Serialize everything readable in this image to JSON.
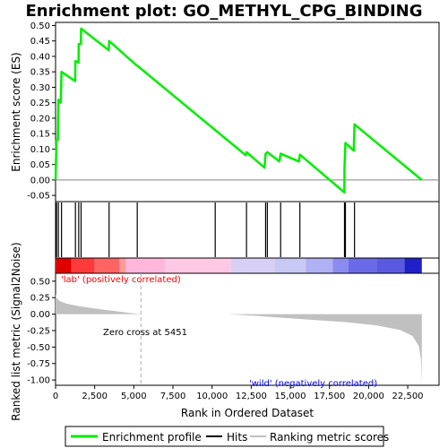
{
  "chart_data": {
    "type": "line",
    "title": "Enrichment plot: GO_METHYL_CPG_BINDING",
    "colors": {
      "enrichment_line": "#00ee00",
      "hits": "#000000",
      "ranking_fill": "#c0c0c0",
      "positive_label": "#ff0000",
      "negative_label": "#0000ff",
      "zero_cross_line": "#aaaaaa"
    },
    "panels": {
      "enrichment": {
        "ylabel": "Enrichment score (ES)",
        "ylim": [
          -0.07,
          0.51
        ],
        "yticks": [
          -0.05,
          0.0,
          0.05,
          0.1,
          0.15,
          0.2,
          0.25,
          0.3,
          0.35,
          0.4,
          0.45,
          0.5
        ],
        "ytick_labels": [
          "-0.05",
          "0.00",
          "0.05",
          "0.10",
          "0.15",
          "0.20",
          "0.25",
          "0.30",
          "0.35",
          "0.40",
          "0.45",
          "0.50"
        ],
        "baseline": 0.0,
        "points": [
          [
            0,
            0.0
          ],
          [
            60,
            0.13
          ],
          [
            150,
            0.13
          ],
          [
            180,
            0.26
          ],
          [
            330,
            0.25
          ],
          [
            380,
            0.35
          ],
          [
            1250,
            0.32
          ],
          [
            1270,
            0.385
          ],
          [
            1470,
            0.38
          ],
          [
            1480,
            0.44
          ],
          [
            1620,
            0.44
          ],
          [
            1630,
            0.49
          ],
          [
            3400,
            0.42
          ],
          [
            3420,
            0.45
          ],
          [
            5200,
            0.37
          ],
          [
            5220,
            0.37
          ],
          [
            12150,
            0.08
          ],
          [
            12200,
            0.09
          ],
          [
            13350,
            0.04
          ],
          [
            13420,
            0.085
          ],
          [
            13530,
            0.09
          ],
          [
            14300,
            0.06
          ],
          [
            14380,
            0.085
          ],
          [
            15550,
            0.06
          ],
          [
            15610,
            0.082
          ],
          [
            18450,
            -0.04
          ],
          [
            18460,
            0.04
          ],
          [
            18520,
            0.12
          ],
          [
            19050,
            0.095
          ],
          [
            19100,
            0.18
          ],
          [
            23400,
            0.0
          ]
        ]
      },
      "hits": {
        "positions": [
          60,
          180,
          380,
          1270,
          1480,
          1630,
          3420,
          5220,
          10200,
          12200,
          13420,
          13530,
          14380,
          15610,
          18460,
          18520,
          19100
        ]
      },
      "ranking": {
        "xlabel": "Rank in Ordered Dataset",
        "ylabel": "Ranked list metric (Signal2Noise)",
        "xlim": [
          0,
          24500
        ],
        "ylim": [
          -1.08,
          0.62
        ],
        "yticks": [
          -1.0,
          -0.75,
          -0.5,
          -0.25,
          0.0,
          0.25,
          0.5
        ],
        "ytick_labels": [
          "-1.00",
          "-0.75",
          "-0.50",
          "-0.25",
          "0.00",
          "0.25",
          "0.50"
        ],
        "xticks": [
          0,
          2500,
          5000,
          7500,
          10000,
          12500,
          15000,
          17500,
          20000,
          22500
        ],
        "xtick_labels": [
          "0",
          "2,500",
          "5,000",
          "7,500",
          "10,000",
          "12,500",
          "15,000",
          "17,500",
          "20,000",
          "22,500"
        ],
        "curve": [
          [
            0,
            0.3
          ],
          [
            60,
            0.25
          ],
          [
            250,
            0.2
          ],
          [
            700,
            0.16
          ],
          [
            1500,
            0.12
          ],
          [
            3000,
            0.07
          ],
          [
            4500,
            0.025
          ],
          [
            5451,
            0.0
          ],
          [
            11000,
            0.0
          ],
          [
            13000,
            -0.03
          ],
          [
            16000,
            -0.08
          ],
          [
            18500,
            -0.12
          ],
          [
            20500,
            -0.17
          ],
          [
            22000,
            -0.24
          ],
          [
            22800,
            -0.33
          ],
          [
            23200,
            -0.48
          ],
          [
            23350,
            -0.7
          ],
          [
            23400,
            -1.05
          ]
        ],
        "zero_cross": 5451,
        "zero_cross_label": "Zero cross at 5451",
        "positive_label": "'lab' (positively correlated)",
        "negative_label": "'wild' (negatively correlated)"
      },
      "heatbar": {
        "total": 23400,
        "segments": [
          {
            "end": 1000,
            "color": "#e00000"
          },
          {
            "end": 2500,
            "color": "#ff3a3a"
          },
          {
            "end": 4100,
            "color": "#ff6464"
          },
          {
            "end": 4500,
            "color": "#ff9a9a"
          },
          {
            "end": 7000,
            "color": "#ffb8dc"
          },
          {
            "end": 11200,
            "color": "#ffc8e4"
          },
          {
            "end": 14000,
            "color": "#d8d0f4"
          },
          {
            "end": 16000,
            "color": "#c8c8f4"
          },
          {
            "end": 17700,
            "color": "#b0b0f4"
          },
          {
            "end": 18700,
            "color": "#8c8cf0"
          },
          {
            "end": 20500,
            "color": "#6a6ae8"
          },
          {
            "end": 22300,
            "color": "#5a5ae0"
          },
          {
            "end": 23400,
            "color": "#2020c8"
          }
        ]
      }
    },
    "legend": {
      "placement": "bottom",
      "items": [
        {
          "label": "Enrichment profile",
          "color": "#00ee00"
        },
        {
          "label": "Hits",
          "color": "#000000"
        },
        {
          "label": "Ranking metric scores",
          "color": "#c0c0c0"
        }
      ]
    }
  }
}
